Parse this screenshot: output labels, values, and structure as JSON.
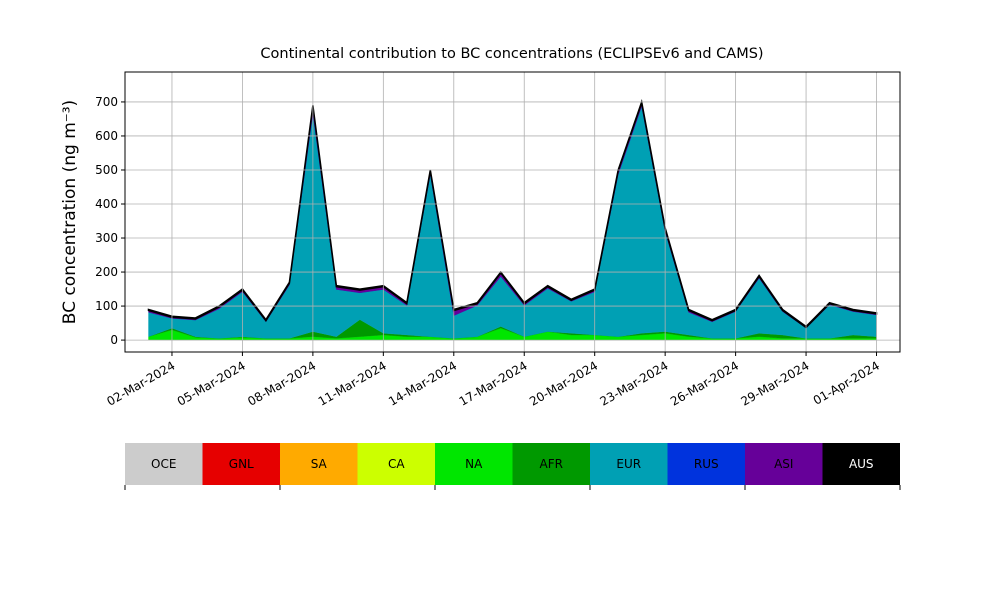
{
  "chart_data": {
    "type": "stacked_area",
    "title": "Continental contribution to BC concentrations (ECLIPSEv6 and CAMS)",
    "y_label": "BC concentration (ng m⁻³)",
    "x": [
      "2024-03-01",
      "2024-03-02",
      "2024-03-03",
      "2024-03-04",
      "2024-03-05",
      "2024-03-06",
      "2024-03-07",
      "2024-03-08",
      "2024-03-09",
      "2024-03-10",
      "2024-03-11",
      "2024-03-12",
      "2024-03-13",
      "2024-03-14",
      "2024-03-15",
      "2024-03-16",
      "2024-03-17",
      "2024-03-18",
      "2024-03-19",
      "2024-03-20",
      "2024-03-21",
      "2024-03-22",
      "2024-03-23",
      "2024-03-24",
      "2024-03-25",
      "2024-03-26",
      "2024-03-27",
      "2024-03-28",
      "2024-03-29",
      "2024-03-30",
      "2024-03-31",
      "2024-04-01"
    ],
    "series": [
      {
        "name": "OCE",
        "color": "#cccccc",
        "values": [
          0,
          0,
          0,
          0,
          0,
          0,
          0,
          0,
          0,
          0,
          0,
          0,
          0,
          0,
          0,
          0,
          0,
          0,
          0,
          0,
          0,
          0,
          0,
          0,
          0,
          0,
          0,
          0,
          0,
          0,
          0,
          0
        ]
      },
      {
        "name": "GNL",
        "color": "#e60000",
        "values": [
          0,
          0,
          0,
          0,
          0,
          0,
          0,
          0,
          0,
          0,
          0,
          0,
          0,
          0,
          0,
          0,
          0,
          0,
          0,
          0,
          0,
          0,
          0,
          0,
          0,
          0,
          0,
          0,
          0,
          0,
          0,
          0
        ]
      },
      {
        "name": "SA",
        "color": "#ffaa00",
        "values": [
          0,
          0,
          0,
          0,
          0,
          0,
          0,
          0,
          0,
          0,
          0,
          0,
          0,
          0,
          0,
          0,
          0,
          0,
          0,
          0,
          0,
          0,
          0,
          0,
          0,
          0,
          0,
          0,
          0,
          0,
          0,
          0
        ]
      },
      {
        "name": "CA",
        "color": "#ccff00",
        "values": [
          0,
          0,
          0,
          0,
          0,
          0,
          0,
          0,
          0,
          0,
          0,
          0,
          0,
          0,
          0,
          0,
          0,
          0,
          0,
          0,
          0,
          0,
          0,
          0,
          0,
          0,
          0,
          0,
          0,
          0,
          0,
          0
        ]
      },
      {
        "name": "NA",
        "color": "#00e600",
        "values": [
          10,
          30,
          8,
          5,
          8,
          5,
          5,
          10,
          5,
          10,
          15,
          10,
          10,
          5,
          10,
          35,
          10,
          25,
          15,
          15,
          10,
          15,
          20,
          10,
          5,
          5,
          10,
          5,
          5,
          5,
          5,
          5
        ]
      },
      {
        "name": "AFR",
        "color": "#009900",
        "values": [
          0,
          5,
          2,
          0,
          2,
          0,
          0,
          15,
          5,
          50,
          5,
          5,
          0,
          0,
          0,
          5,
          0,
          0,
          5,
          0,
          0,
          5,
          5,
          5,
          0,
          0,
          10,
          10,
          0,
          0,
          10,
          5
        ]
      },
      {
        "name": "EUR",
        "color": "#00a0b4",
        "values": [
          72,
          29,
          49,
          87,
          132,
          49,
          157,
          642,
          139,
          79,
          129,
          87,
          477,
          67,
          92,
          147,
          92,
          127,
          94,
          127,
          477,
          667,
          294,
          67,
          49,
          79,
          162,
          69,
          30,
          99,
          69,
          64
        ]
      },
      {
        "name": "RUS",
        "color": "#0033dd",
        "values": [
          0,
          0,
          0,
          0,
          0,
          0,
          0,
          0,
          0,
          0,
          0,
          0,
          0,
          0,
          0,
          0,
          0,
          0,
          0,
          0,
          0,
          0,
          0,
          0,
          0,
          0,
          0,
          0,
          0,
          0,
          0,
          0
        ]
      },
      {
        "name": "ASI",
        "color": "#660099",
        "values": [
          5,
          3,
          3,
          5,
          5,
          3,
          5,
          20,
          8,
          8,
          8,
          5,
          10,
          15,
          5,
          10,
          5,
          5,
          3,
          5,
          10,
          10,
          8,
          5,
          3,
          3,
          5,
          3,
          2,
          3,
          3,
          3
        ]
      },
      {
        "name": "AUS",
        "color": "#000000",
        "values": [
          3,
          3,
          3,
          3,
          3,
          3,
          3,
          3,
          3,
          3,
          3,
          3,
          3,
          3,
          3,
          3,
          3,
          3,
          3,
          3,
          3,
          3,
          3,
          3,
          3,
          3,
          3,
          3,
          3,
          3,
          3,
          3
        ]
      }
    ],
    "xlim": [
      "2024-02-29",
      "2024-04-02"
    ],
    "xticks": [
      {
        "value": "2024-03-02",
        "label": "02-Mar-2024"
      },
      {
        "value": "2024-03-05",
        "label": "05-Mar-2024"
      },
      {
        "value": "2024-03-08",
        "label": "08-Mar-2024"
      },
      {
        "value": "2024-03-11",
        "label": "11-Mar-2024"
      },
      {
        "value": "2024-03-14",
        "label": "14-Mar-2024"
      },
      {
        "value": "2024-03-17",
        "label": "17-Mar-2024"
      },
      {
        "value": "2024-03-20",
        "label": "20-Mar-2024"
      },
      {
        "value": "2024-03-23",
        "label": "23-Mar-2024"
      },
      {
        "value": "2024-03-26",
        "label": "26-Mar-2024"
      },
      {
        "value": "2024-03-29",
        "label": "29-Mar-2024"
      },
      {
        "value": "2024-04-01",
        "label": "01-Apr-2024"
      }
    ],
    "ylim": [
      -35,
      788
    ],
    "yticks": [
      0,
      100,
      200,
      300,
      400,
      500,
      600,
      700
    ],
    "grid": true
  }
}
